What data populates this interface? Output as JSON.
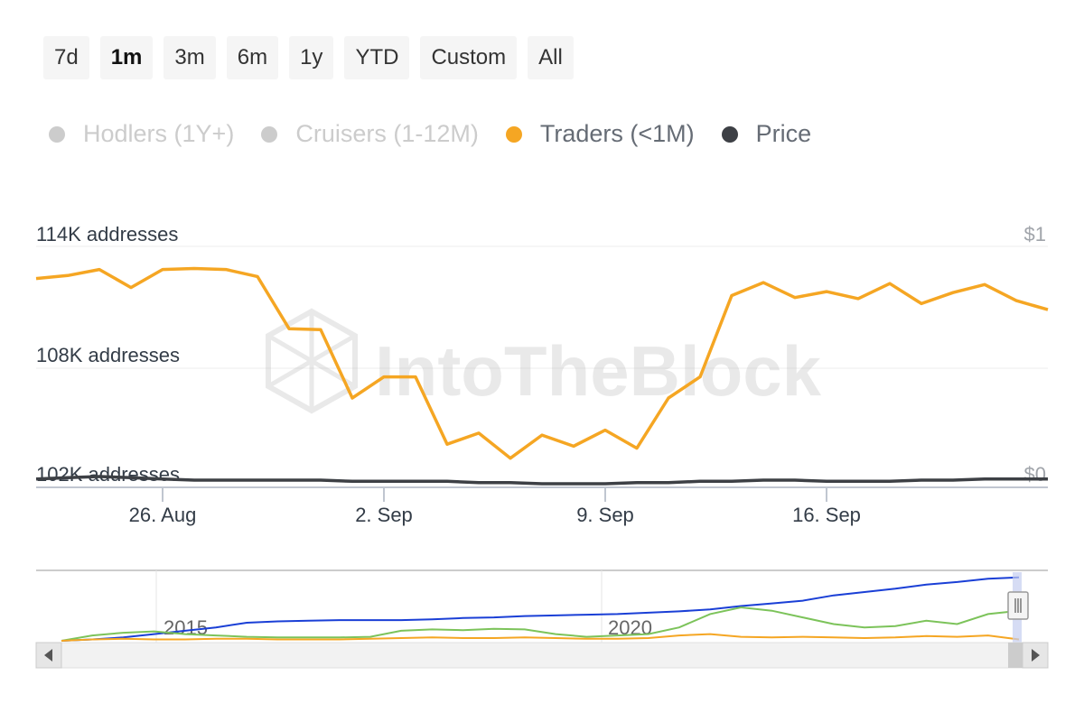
{
  "range_selector": {
    "buttons": [
      "7d",
      "1m",
      "3m",
      "6m",
      "1y",
      "YTD",
      "Custom",
      "All"
    ],
    "active": "1m"
  },
  "legend": [
    {
      "label": "Hodlers (1Y+)",
      "color": "#cccccc",
      "enabled": false
    },
    {
      "label": "Cruisers (1-12M)",
      "color": "#cccccc",
      "enabled": false
    },
    {
      "label": "Traders (<1M)",
      "color": "#f5a623",
      "enabled": true
    },
    {
      "label": "Price",
      "color": "#3d4045",
      "enabled": true
    }
  ],
  "watermark": "IntoTheBlock",
  "chart_data": {
    "type": "line",
    "x_start": "2023-08-21",
    "x": [
      "Aug 21",
      "Aug 22",
      "Aug 23",
      "Aug 24",
      "Aug 25",
      "Aug 26",
      "Aug 27",
      "Aug 28",
      "Aug 29",
      "Aug 30",
      "Aug 31",
      "Sep 1",
      "Sep 2",
      "Sep 3",
      "Sep 4",
      "Sep 5",
      "Sep 6",
      "Sep 7",
      "Sep 8",
      "Sep 9",
      "Sep 10",
      "Sep 11",
      "Sep 12",
      "Sep 13",
      "Sep 14",
      "Sep 15",
      "Sep 16",
      "Sep 17",
      "Sep 18",
      "Sep 19",
      "Sep 20",
      "Sep 21",
      "Sep 22"
    ],
    "x_ticks": [
      {
        "label": "26. Aug",
        "index": 4
      },
      {
        "label": "2. Sep",
        "index": 11
      },
      {
        "label": "9. Sep",
        "index": 18
      },
      {
        "label": "16. Sep",
        "index": 25
      }
    ],
    "y_left": {
      "ticks": [
        "114K addresses",
        "108K addresses",
        "102K addresses"
      ],
      "values": [
        114000,
        108000,
        102000
      ],
      "range": [
        102000,
        114000
      ]
    },
    "y_right": {
      "ticks": [
        "$1",
        "$0"
      ],
      "values": [
        1,
        0
      ],
      "range": [
        0,
        1
      ]
    },
    "series": [
      {
        "name": "Traders (<1M)",
        "axis": "left",
        "color": "#f5a623",
        "values": [
          112400,
          112550,
          112850,
          111950,
          112850,
          112900,
          112850,
          112500,
          109900,
          109850,
          106450,
          107500,
          107500,
          104150,
          104700,
          103450,
          104600,
          104050,
          104850,
          103950,
          106450,
          107500,
          111550,
          112200,
          111450,
          111750,
          111400,
          112150,
          111150,
          111700,
          112100,
          111300,
          110850
        ]
      },
      {
        "name": "Price",
        "axis": "right",
        "color": "#3d4045",
        "values": [
          0.035,
          0.04,
          0.045,
          0.04,
          0.035,
          0.03,
          0.03,
          0.03,
          0.03,
          0.03,
          0.025,
          0.025,
          0.025,
          0.025,
          0.02,
          0.02,
          0.015,
          0.015,
          0.015,
          0.02,
          0.02,
          0.025,
          0.025,
          0.03,
          0.03,
          0.025,
          0.025,
          0.025,
          0.03,
          0.03,
          0.035,
          0.035,
          0.035
        ]
      }
    ],
    "navigator": {
      "labels": [
        "2015",
        "2020"
      ],
      "series": [
        {
          "color": "#1a3fd6",
          "values": [
            0.0,
            0.02,
            0.05,
            0.1,
            0.15,
            0.2,
            0.27,
            0.29,
            0.3,
            0.31,
            0.31,
            0.31,
            0.32,
            0.34,
            0.35,
            0.37,
            0.38,
            0.39,
            0.4,
            0.42,
            0.44,
            0.47,
            0.52,
            0.56,
            0.6,
            0.68,
            0.73,
            0.78,
            0.84,
            0.88,
            0.93,
            0.95
          ]
        },
        {
          "color": "#7cc35a",
          "values": [
            0.0,
            0.08,
            0.12,
            0.14,
            0.1,
            0.08,
            0.06,
            0.05,
            0.05,
            0.05,
            0.06,
            0.15,
            0.17,
            0.16,
            0.18,
            0.17,
            0.1,
            0.06,
            0.08,
            0.1,
            0.2,
            0.4,
            0.5,
            0.45,
            0.35,
            0.25,
            0.2,
            0.22,
            0.3,
            0.25,
            0.4,
            0.45
          ]
        },
        {
          "color": "#f5a623",
          "values": [
            0.0,
            0.02,
            0.03,
            0.02,
            0.02,
            0.03,
            0.03,
            0.02,
            0.02,
            0.02,
            0.03,
            0.04,
            0.05,
            0.04,
            0.04,
            0.05,
            0.04,
            0.03,
            0.03,
            0.04,
            0.08,
            0.1,
            0.06,
            0.05,
            0.06,
            0.05,
            0.04,
            0.05,
            0.07,
            0.06,
            0.08,
            0.02
          ]
        }
      ]
    }
  }
}
